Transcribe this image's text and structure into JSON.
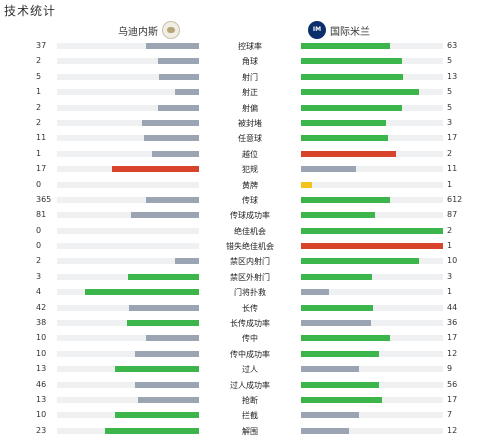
{
  "header": {
    "title": "技术统计"
  },
  "teams": {
    "home": {
      "name": "乌迪内斯",
      "icon": "udinese-crest-icon"
    },
    "away": {
      "name": "国际米兰",
      "icon": "inter-crest-icon",
      "badge_text": "IM"
    }
  },
  "colors": {
    "green": "#3cb54a",
    "gray": "#9aa4b2",
    "red": "#d8442b",
    "yellow": "#f4c21c",
    "track": "#eef0f2"
  },
  "stats": [
    {
      "label": "控球率",
      "home": "37",
      "away": "63",
      "home_frac": 0.37,
      "away_frac": 0.63,
      "home_color": "gray",
      "away_color": "green"
    },
    {
      "label": "角球",
      "home": "2",
      "away": "5",
      "home_frac": 0.29,
      "away_frac": 0.71,
      "home_color": "gray",
      "away_color": "green"
    },
    {
      "label": "射门",
      "home": "5",
      "away": "13",
      "home_frac": 0.28,
      "away_frac": 0.72,
      "home_color": "gray",
      "away_color": "green"
    },
    {
      "label": "射正",
      "home": "1",
      "away": "5",
      "home_frac": 0.17,
      "away_frac": 0.83,
      "home_color": "gray",
      "away_color": "green"
    },
    {
      "label": "射偏",
      "home": "2",
      "away": "5",
      "home_frac": 0.29,
      "away_frac": 0.71,
      "home_color": "gray",
      "away_color": "green"
    },
    {
      "label": "被封堵",
      "home": "2",
      "away": "3",
      "home_frac": 0.4,
      "away_frac": 0.6,
      "home_color": "gray",
      "away_color": "green"
    },
    {
      "label": "任意球",
      "home": "11",
      "away": "17",
      "home_frac": 0.39,
      "away_frac": 0.61,
      "home_color": "gray",
      "away_color": "green"
    },
    {
      "label": "越位",
      "home": "1",
      "away": "2",
      "home_frac": 0.33,
      "away_frac": 0.67,
      "home_color": "gray",
      "away_color": "red"
    },
    {
      "label": "犯规",
      "home": "17",
      "away": "11",
      "home_frac": 0.61,
      "away_frac": 0.39,
      "home_color": "red",
      "away_color": "gray"
    },
    {
      "label": "黄牌",
      "home": "0",
      "away": "1",
      "home_frac": 0,
      "away_frac": 0.08,
      "home_color": "gray",
      "away_color": "yellow"
    },
    {
      "label": "传球",
      "home": "365",
      "away": "612",
      "home_frac": 0.37,
      "away_frac": 0.63,
      "home_color": "gray",
      "away_color": "green"
    },
    {
      "label": "传球成功率",
      "home": "81",
      "away": "87",
      "home_frac": 0.48,
      "away_frac": 0.52,
      "home_color": "gray",
      "away_color": "green"
    },
    {
      "label": "绝佳机会",
      "home": "0",
      "away": "2",
      "home_frac": 0,
      "away_frac": 1,
      "home_color": "gray",
      "away_color": "green"
    },
    {
      "label": "错失绝佳机会",
      "home": "0",
      "away": "1",
      "home_frac": 0,
      "away_frac": 1,
      "home_color": "gray",
      "away_color": "red"
    },
    {
      "label": "禁区内射门",
      "home": "2",
      "away": "10",
      "home_frac": 0.17,
      "away_frac": 0.83,
      "home_color": "gray",
      "away_color": "green"
    },
    {
      "label": "禁区外射门",
      "home": "3",
      "away": "3",
      "home_frac": 0.5,
      "away_frac": 0.5,
      "home_color": "green",
      "away_color": "green"
    },
    {
      "label": "门将扑救",
      "home": "4",
      "away": "1",
      "home_frac": 0.8,
      "away_frac": 0.2,
      "home_color": "green",
      "away_color": "gray"
    },
    {
      "label": "长传",
      "home": "42",
      "away": "44",
      "home_frac": 0.49,
      "away_frac": 0.51,
      "home_color": "gray",
      "away_color": "green"
    },
    {
      "label": "长传成功率",
      "home": "38",
      "away": "36",
      "home_frac": 0.51,
      "away_frac": 0.49,
      "home_color": "green",
      "away_color": "gray"
    },
    {
      "label": "传中",
      "home": "10",
      "away": "17",
      "home_frac": 0.37,
      "away_frac": 0.63,
      "home_color": "gray",
      "away_color": "green"
    },
    {
      "label": "传中成功率",
      "home": "10",
      "away": "12",
      "home_frac": 0.45,
      "away_frac": 0.55,
      "home_color": "gray",
      "away_color": "green"
    },
    {
      "label": "过人",
      "home": "13",
      "away": "9",
      "home_frac": 0.59,
      "away_frac": 0.41,
      "home_color": "green",
      "away_color": "gray"
    },
    {
      "label": "过人成功率",
      "home": "46",
      "away": "56",
      "home_frac": 0.45,
      "away_frac": 0.55,
      "home_color": "gray",
      "away_color": "green"
    },
    {
      "label": "抢断",
      "home": "13",
      "away": "17",
      "home_frac": 0.43,
      "away_frac": 0.57,
      "home_color": "gray",
      "away_color": "green"
    },
    {
      "label": "拦截",
      "home": "10",
      "away": "7",
      "home_frac": 0.59,
      "away_frac": 0.41,
      "home_color": "green",
      "away_color": "gray"
    },
    {
      "label": "解围",
      "home": "23",
      "away": "12",
      "home_frac": 0.66,
      "away_frac": 0.34,
      "home_color": "green",
      "away_color": "gray"
    }
  ]
}
